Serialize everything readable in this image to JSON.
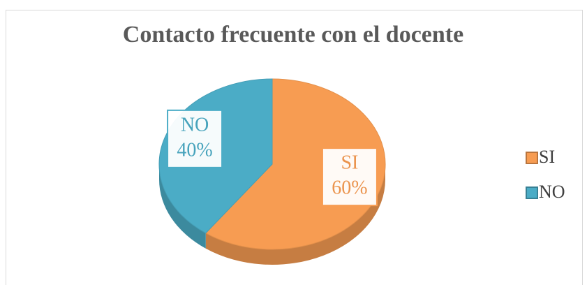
{
  "chart_data": {
    "type": "pie",
    "title": "Contacto frecuente con el docente",
    "categories": [
      "SI",
      "NO"
    ],
    "values": [
      60,
      40
    ],
    "value_labels": [
      "60%",
      "40%"
    ],
    "colors": [
      "#f79c52",
      "#4bacc6"
    ],
    "legend": "right"
  }
}
